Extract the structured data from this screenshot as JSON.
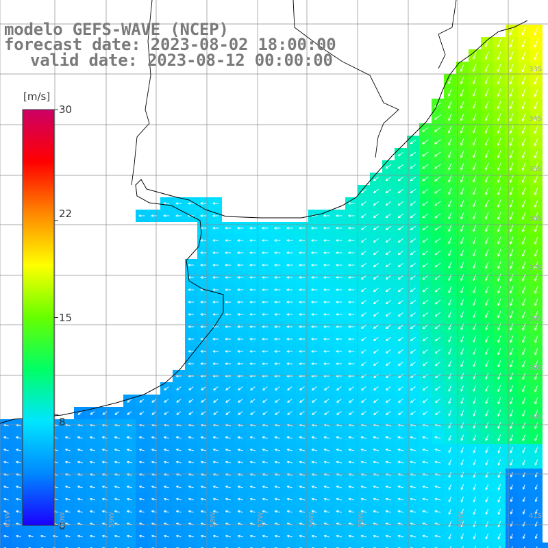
{
  "titles": {
    "model": "modelo GEFS-WAVE (NCEP)",
    "forecast": "forecast date: 2023-08-02 18:00:00",
    "valid": "valid date: 2023-08-12 00:00:00"
  },
  "colorbar": {
    "unit": "[m/s]",
    "ticks": [
      "30",
      "22",
      "15",
      "8",
      "0"
    ],
    "tick_values": [
      30,
      22,
      15,
      8,
      0
    ],
    "range": [
      0,
      30
    ],
    "colors": [
      "#1a00ff",
      "#0088ff",
      "#00e5ff",
      "#00ff66",
      "#66ff00",
      "#ffff00",
      "#ff8800",
      "#ff0000",
      "#cc0066"
    ]
  },
  "map": {
    "variable": "wind speed and direction",
    "lat_labels": [
      "33S",
      "34S",
      "35S",
      "36S",
      "37S",
      "38S",
      "39S",
      "40S",
      "41S"
    ],
    "lon_labels": [
      "61W",
      "60W",
      "59W",
      "58W",
      "57W",
      "56W",
      "55W",
      "54W"
    ],
    "grid_color": "#8c8c8c",
    "coast_color": "#000000",
    "land_color": "#ffffff"
  }
}
